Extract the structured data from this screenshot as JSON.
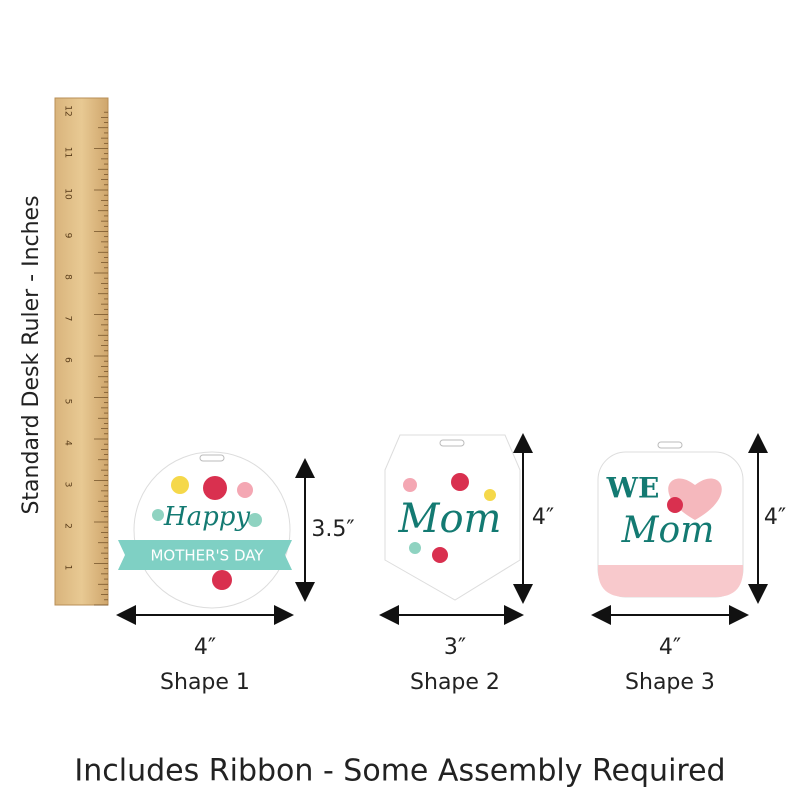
{
  "ruler": {
    "caption": "Standard Desk Ruler - Inches",
    "labels": [
      1,
      2,
      3,
      4,
      5,
      6,
      7,
      8,
      9,
      10,
      11,
      12
    ]
  },
  "shapes": [
    {
      "name": "Shape 1",
      "width": "4″",
      "height": "3.5″",
      "texts": [
        "Happy",
        "MOTHER'S DAY"
      ]
    },
    {
      "name": "Shape 2",
      "width": "3″",
      "height": "4″",
      "texts": [
        "Mom"
      ]
    },
    {
      "name": "Shape 3",
      "width": "4″",
      "height": "4″",
      "texts": [
        "WE",
        "Mom"
      ]
    }
  ],
  "footer": "Includes Ribbon - Some Assembly Required"
}
